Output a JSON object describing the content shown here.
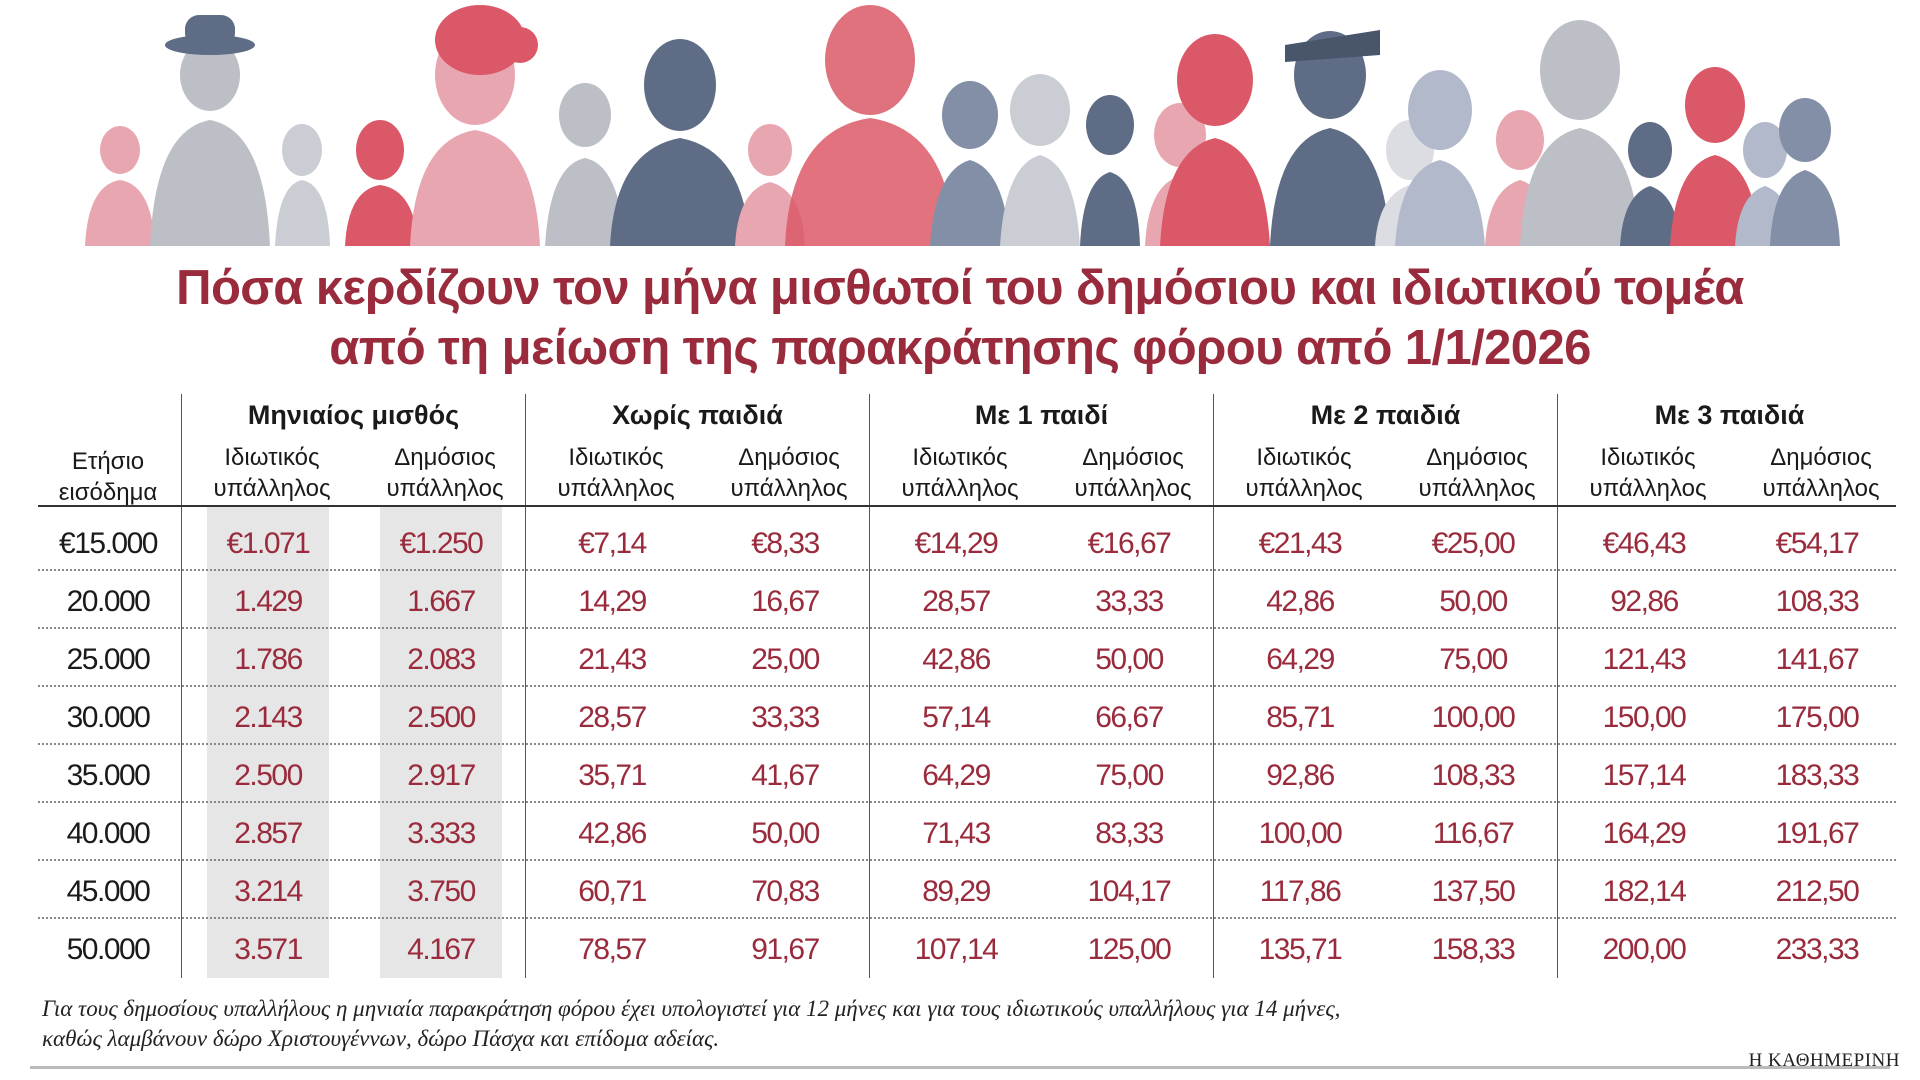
{
  "title": {
    "line1": "Πόσα κερδίζουν τον μήνα μισθωτοί του δημόσιου και ιδιωτικού τομέα",
    "line2": "από τη μείωση της παρακράτησης φόρου από 1/1/2026"
  },
  "header": {
    "income_label": [
      "Ετήσιο",
      "εισόδημα"
    ],
    "groups": [
      "Μηνιαίος μισθός",
      "Χωρίς παιδιά",
      "Με 1 παιδί",
      "Με 2 παιδιά",
      "Με 3 παιδιά"
    ],
    "private_label": [
      "Ιδιωτικός",
      "υπάλληλος"
    ],
    "public_label": [
      "Δημόσιος",
      "υπάλληλος"
    ]
  },
  "rows": [
    {
      "income": "€15.000",
      "values": [
        "€1.071",
        "€1.250",
        "€7,14",
        "€8,33",
        "€14,29",
        "€16,67",
        "€21,43",
        "€25,00",
        "€46,43",
        "€54,17"
      ]
    },
    {
      "income": "20.000",
      "values": [
        "1.429",
        "1.667",
        "14,29",
        "16,67",
        "28,57",
        "33,33",
        "42,86",
        "50,00",
        "92,86",
        "108,33"
      ]
    },
    {
      "income": "25.000",
      "values": [
        "1.786",
        "2.083",
        "21,43",
        "25,00",
        "42,86",
        "50,00",
        "64,29",
        "75,00",
        "121,43",
        "141,67"
      ]
    },
    {
      "income": "30.000",
      "values": [
        "2.143",
        "2.500",
        "28,57",
        "33,33",
        "57,14",
        "66,67",
        "85,71",
        "100,00",
        "150,00",
        "175,00"
      ]
    },
    {
      "income": "35.000",
      "values": [
        "2.500",
        "2.917",
        "35,71",
        "41,67",
        "64,29",
        "75,00",
        "92,86",
        "108,33",
        "157,14",
        "183,33"
      ]
    },
    {
      "income": "40.000",
      "values": [
        "2.857",
        "3.333",
        "42,86",
        "50,00",
        "71,43",
        "83,33",
        "100,00",
        "116,67",
        "164,29",
        "191,67"
      ]
    },
    {
      "income": "45.000",
      "values": [
        "3.214",
        "3.750",
        "60,71",
        "70,83",
        "89,29",
        "104,17",
        "117,86",
        "137,50",
        "182,14",
        "212,50"
      ]
    },
    {
      "income": "50.000",
      "values": [
        "3.571",
        "4.167",
        "78,57",
        "91,67",
        "107,14",
        "125,00",
        "135,71",
        "158,33",
        "200,00",
        "233,33"
      ]
    }
  ],
  "footnote": {
    "line1": "Για τους δημοσίους υπαλλήλους η μηνιαία παρακράτηση φόρου έχει υπολογιστεί για 12 μήνες και για τους ιδιωτικούς υπαλλήλους για 14 μήνες,",
    "line2": "καθώς λαμβάνουν δώρο Χριστουγέννων, δώρο Πάσχα και επίδομα αδείας."
  },
  "brand": "Η ΚΑΘΗΜΕΡΙΝΗ",
  "colors": {
    "accent_red": "#9a2b3c",
    "banner_red": "#d9505f",
    "banner_pink": "#e7a3ac",
    "banner_navy": "#56657f",
    "banner_grey": "#b9bcc3",
    "shade": "#e6e6e6"
  }
}
